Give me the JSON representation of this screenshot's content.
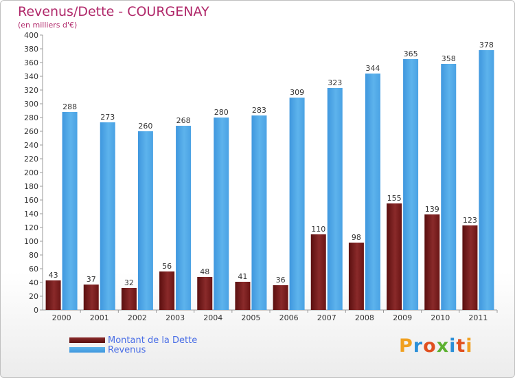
{
  "colors": {
    "debt": "#7a1c1c",
    "revenue": "#4aa6e8",
    "title": "#b0286a",
    "legend_text": "#4a6ee6",
    "logo": [
      "#f0a020",
      "#2a8fd8",
      "#e05020",
      "#5cb030",
      "#2a8fd8",
      "#e05020"
    ]
  },
  "legend": {
    "debt_label": "Montant de la Dette",
    "revenue_label": "Revenus"
  },
  "logo": {
    "letters": [
      "P",
      "r",
      "o",
      "x",
      "i",
      "t",
      "i"
    ]
  },
  "chart_data": {
    "type": "bar",
    "title": "Revenus/Dette - COURGENAY",
    "subtitle": "(en milliers d'€)",
    "xlabel": "",
    "ylabel": "",
    "categories": [
      "2000",
      "2001",
      "2002",
      "2003",
      "2004",
      "2005",
      "2006",
      "2007",
      "2008",
      "2009",
      "2010",
      "2011"
    ],
    "series": [
      {
        "name": "Montant de la Dette",
        "values": [
          43,
          37,
          32,
          56,
          48,
          41,
          36,
          110,
          98,
          155,
          139,
          123
        ]
      },
      {
        "name": "Revenus",
        "values": [
          288,
          273,
          260,
          268,
          280,
          283,
          309,
          323,
          344,
          365,
          358,
          378
        ]
      }
    ],
    "ylim": [
      0,
      400
    ],
    "yticks": [
      0,
      20,
      40,
      60,
      80,
      100,
      120,
      140,
      160,
      180,
      200,
      220,
      240,
      260,
      280,
      300,
      320,
      340,
      360,
      380,
      400
    ],
    "grid": false,
    "legend_position": "bottom-left"
  }
}
